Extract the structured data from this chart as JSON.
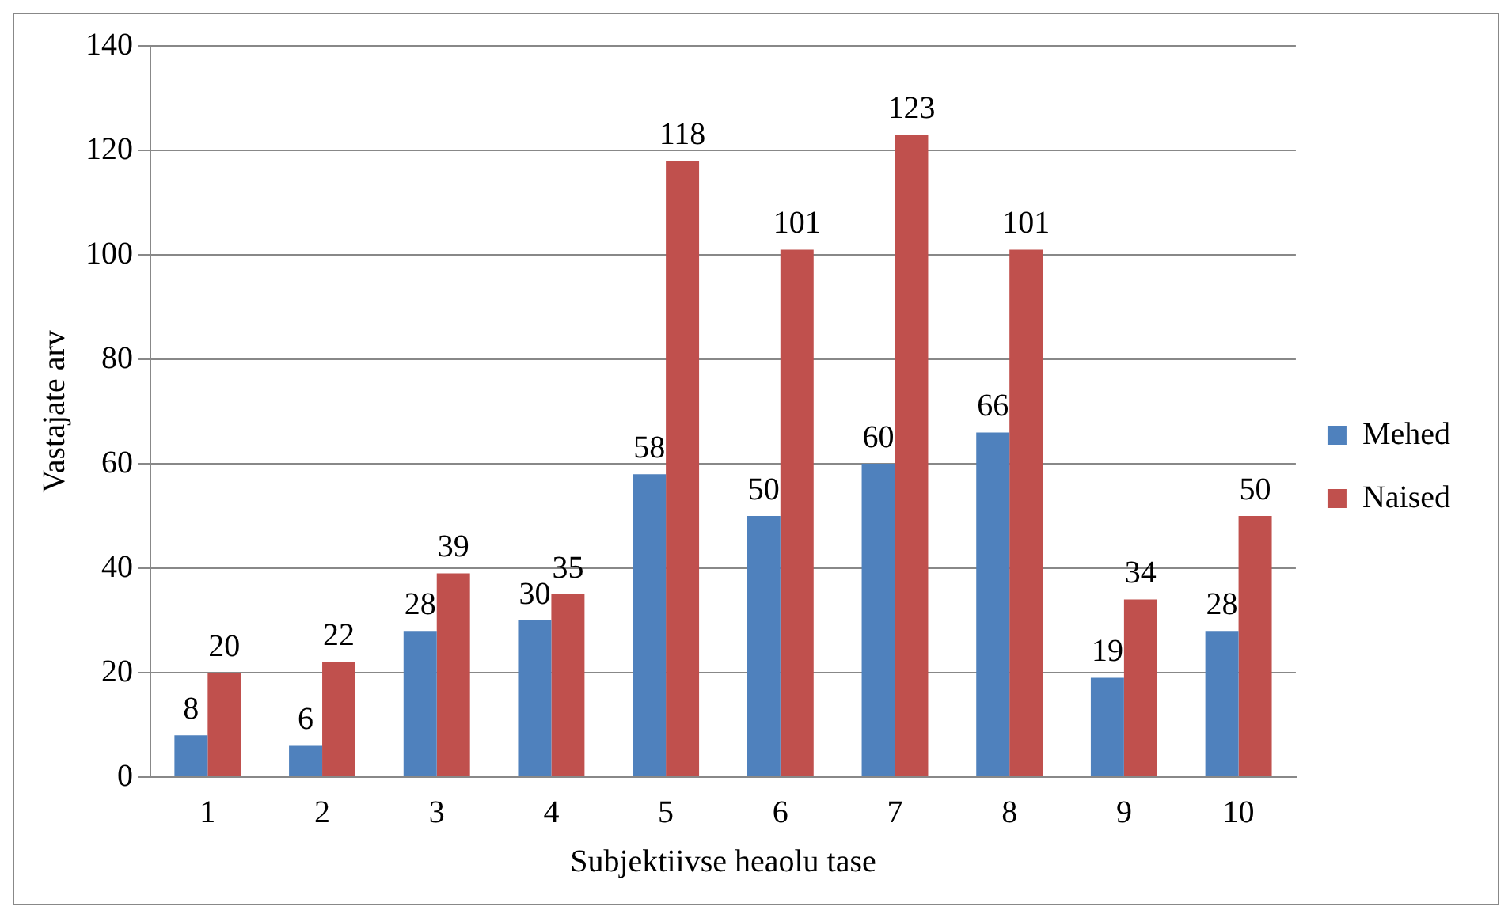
{
  "chart_data": {
    "type": "bar",
    "xlabel": "Subjektiivse heaolu tase",
    "ylabel": "Vastajate arv",
    "categories": [
      "1",
      "2",
      "3",
      "4",
      "5",
      "6",
      "7",
      "8",
      "9",
      "10"
    ],
    "series": [
      {
        "name": "Mehed",
        "color": "#4f81bd",
        "values": [
          8,
          6,
          28,
          30,
          58,
          50,
          60,
          66,
          19,
          28
        ]
      },
      {
        "name": "Naised",
        "color": "#c0504d",
        "values": [
          20,
          22,
          39,
          35,
          118,
          101,
          123,
          101,
          34,
          50
        ]
      }
    ],
    "ylim": [
      0,
      140
    ],
    "yticks": [
      0,
      20,
      40,
      60,
      80,
      100,
      120,
      140
    ],
    "grid": "y",
    "legend": "right",
    "data_labels": true
  }
}
